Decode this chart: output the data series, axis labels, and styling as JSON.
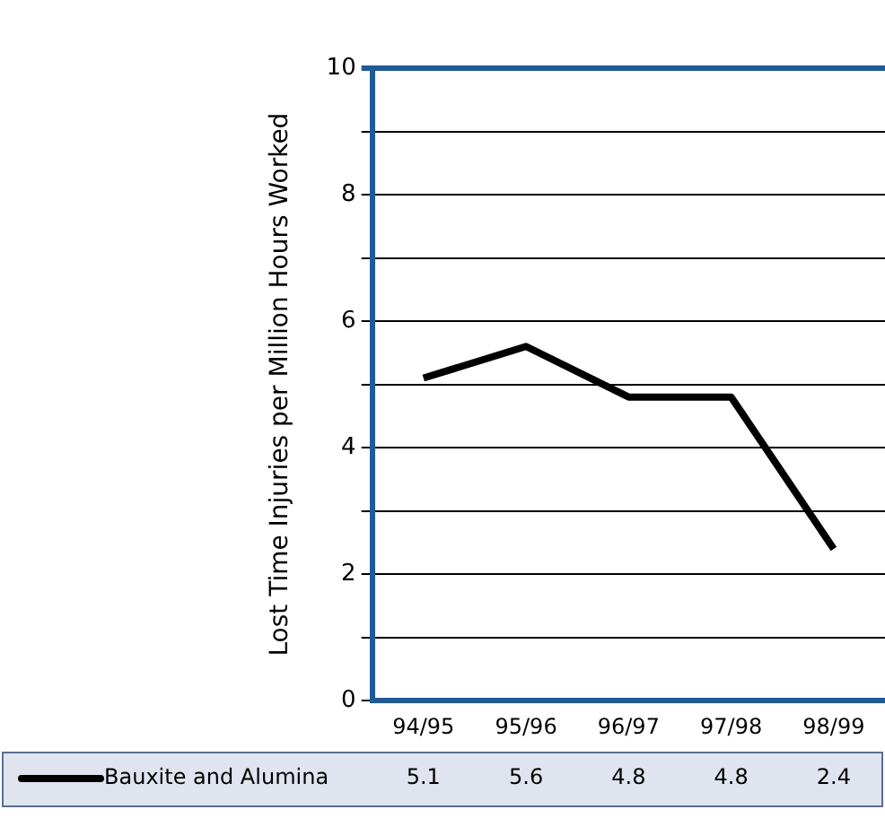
{
  "chart_data": {
    "type": "line",
    "ylabel": "Lost Time Injuries per Million Hours Worked",
    "categories": [
      "94/95",
      "95/96",
      "96/97",
      "97/98",
      "98/99"
    ],
    "series": [
      {
        "name": "Bauxite and Alumina",
        "color": "#000000",
        "values": [
          5.1,
          5.6,
          4.8,
          4.8,
          2.4
        ]
      }
    ],
    "ylim": [
      0,
      10
    ],
    "yticks": [
      0,
      {
        "value": 1,
        "label": null
      },
      2,
      {
        "value": 3,
        "label": null
      },
      4,
      {
        "value": 5,
        "label": null
      },
      6,
      {
        "value": 7,
        "label": null
      },
      8,
      {
        "value": 9,
        "label": null
      },
      10
    ],
    "grid": "y",
    "marker": "none",
    "line_style": "solid",
    "data_labels": true
  }
}
